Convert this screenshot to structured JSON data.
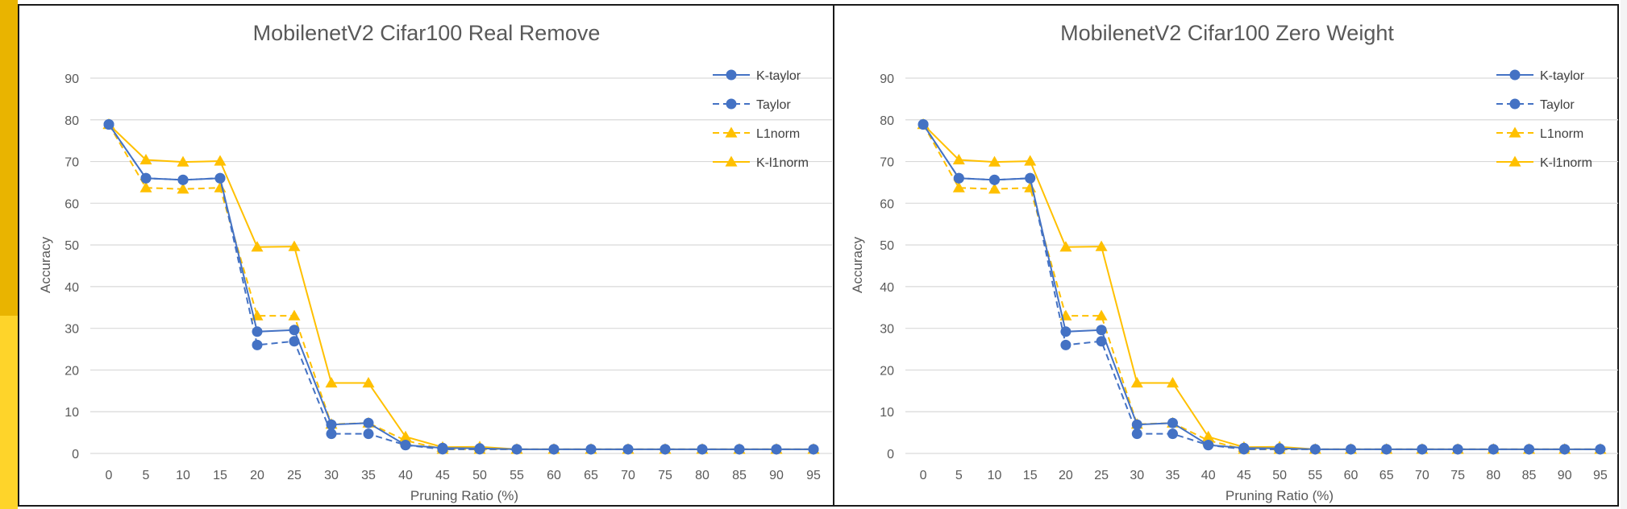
{
  "colors": {
    "blue": "#4472c4",
    "orange": "#ffc000",
    "grid": "#d9d9d9",
    "text": "#595959"
  },
  "chart_data": [
    {
      "type": "line",
      "title": "MobilenetV2 Cifar100 Real Remove",
      "xlabel": "Pruning Ratio (%)",
      "ylabel": "Accuracy",
      "ylim": [
        0,
        90
      ],
      "yticks": [
        "0",
        "10",
        "20",
        "30",
        "40",
        "50",
        "60",
        "70",
        "80",
        "90"
      ],
      "categories": [
        "0",
        "5",
        "10",
        "15",
        "20",
        "25",
        "30",
        "35",
        "40",
        "45",
        "50",
        "55",
        "60",
        "65",
        "70",
        "75",
        "80",
        "85",
        "90",
        "95"
      ],
      "grid": true,
      "legend": "top-right",
      "series": [
        {
          "name": "K-taylor",
          "color": "#4472c4",
          "dash": false,
          "marker": "circle",
          "values": [
            78.9,
            66.0,
            65.6,
            66.0,
            29.2,
            29.6,
            6.9,
            7.3,
            2.0,
            1.3,
            1.2,
            1.0,
            1.0,
            1.0,
            1.0,
            1.0,
            1.0,
            1.0,
            1.0,
            1.0
          ]
        },
        {
          "name": "Taylor",
          "color": "#4472c4",
          "dash": true,
          "marker": "circle",
          "values": [
            78.9,
            66.0,
            65.6,
            66.0,
            26.0,
            26.9,
            4.7,
            4.7,
            2.0,
            1.0,
            1.0,
            1.0,
            1.0,
            1.0,
            1.0,
            1.0,
            1.0,
            1.0,
            1.0,
            1.0
          ]
        },
        {
          "name": "L1norm",
          "color": "#ffc000",
          "dash": true,
          "marker": "triangle",
          "values": [
            78.9,
            63.7,
            63.4,
            63.7,
            33.0,
            33.0,
            7.0,
            7.3,
            3.1,
            1.0,
            1.0,
            1.0,
            1.0,
            1.0,
            1.0,
            1.0,
            1.0,
            1.0,
            1.0,
            1.0
          ]
        },
        {
          "name": "K-l1norm",
          "color": "#ffc000",
          "dash": false,
          "marker": "triangle",
          "values": [
            78.9,
            70.4,
            69.9,
            70.1,
            49.5,
            49.6,
            16.9,
            16.9,
            4.0,
            1.5,
            1.6,
            1.0,
            1.0,
            1.0,
            1.0,
            1.0,
            1.0,
            1.0,
            1.0,
            1.0
          ]
        }
      ]
    },
    {
      "type": "line",
      "title": "MobilenetV2 Cifar100 Zero Weight",
      "xlabel": "Pruning Ratio (%)",
      "ylabel": "Accuracy",
      "ylim": [
        0,
        90
      ],
      "yticks": [
        "0",
        "10",
        "20",
        "30",
        "40",
        "50",
        "60",
        "70",
        "80",
        "90"
      ],
      "categories": [
        "0",
        "5",
        "10",
        "15",
        "20",
        "25",
        "30",
        "35",
        "40",
        "45",
        "50",
        "55",
        "60",
        "65",
        "70",
        "75",
        "80",
        "85",
        "90",
        "95"
      ],
      "grid": true,
      "legend": "top-right",
      "series": [
        {
          "name": "K-taylor",
          "color": "#4472c4",
          "dash": false,
          "marker": "circle",
          "values": [
            78.9,
            66.0,
            65.6,
            66.0,
            29.2,
            29.6,
            6.9,
            7.3,
            2.0,
            1.3,
            1.2,
            1.0,
            1.0,
            1.0,
            1.0,
            1.0,
            1.0,
            1.0,
            1.0,
            1.0
          ]
        },
        {
          "name": "Taylor",
          "color": "#4472c4",
          "dash": true,
          "marker": "circle",
          "values": [
            78.9,
            66.0,
            65.6,
            66.0,
            26.0,
            26.9,
            4.7,
            4.7,
            2.0,
            1.0,
            1.0,
            1.0,
            1.0,
            1.0,
            1.0,
            1.0,
            1.0,
            1.0,
            1.0,
            1.0
          ]
        },
        {
          "name": "L1norm",
          "color": "#ffc000",
          "dash": true,
          "marker": "triangle",
          "values": [
            78.9,
            63.7,
            63.4,
            63.7,
            33.0,
            33.0,
            7.0,
            7.3,
            3.1,
            1.0,
            1.0,
            1.0,
            1.0,
            1.0,
            1.0,
            1.0,
            1.0,
            1.0,
            1.0,
            1.0
          ]
        },
        {
          "name": "K-l1norm",
          "color": "#ffc000",
          "dash": false,
          "marker": "triangle",
          "values": [
            78.9,
            70.4,
            69.9,
            70.1,
            49.5,
            49.6,
            16.9,
            16.9,
            4.0,
            1.5,
            1.6,
            1.0,
            1.0,
            1.0,
            1.0,
            1.0,
            1.0,
            1.0,
            1.0,
            1.0
          ]
        }
      ]
    }
  ]
}
